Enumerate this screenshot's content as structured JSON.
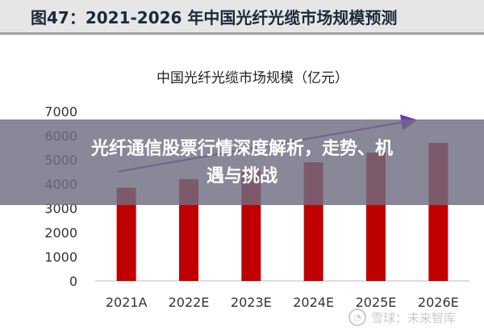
{
  "figure": {
    "title": "图47：2021-2026 年中国光纤光缆市场规模预测"
  },
  "banner": {
    "line1": "光纤通信股票行情深度解析，走势、机",
    "line2": "遇与挑战"
  },
  "watermark": {
    "text": "雪球：未来智库"
  },
  "chart_data": {
    "type": "bar",
    "title": "中国光纤光缆市场规模（亿元）",
    "categories": [
      "2021A",
      "2022E",
      "2023E",
      "2024E",
      "2025E",
      "2026E"
    ],
    "values": [
      3850,
      4200,
      4550,
      4900,
      5300,
      5700
    ],
    "ylim": [
      0,
      7000
    ],
    "yticks": [
      0,
      1000,
      2000,
      3000,
      4000,
      5000,
      6000,
      7000
    ],
    "grid": false,
    "bar_color": "#c00000",
    "trend_arrow": true,
    "arrow_color": "#7a2fb5"
  }
}
